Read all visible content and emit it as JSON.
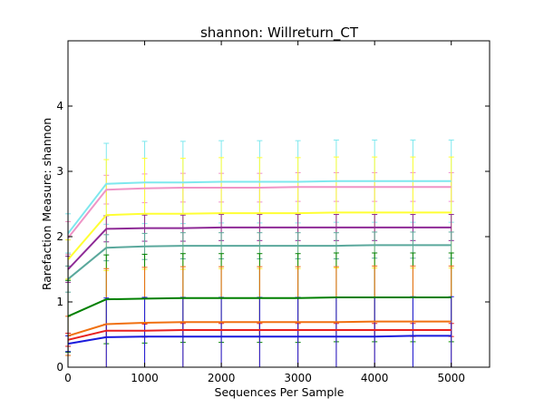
{
  "chart_data": {
    "type": "line",
    "title": "shannon: Willreturn_CT",
    "xlabel": "Sequences Per Sample",
    "ylabel": "Rarefaction Measure: shannon",
    "xlim": [
      0,
      5500
    ],
    "ylim": [
      0,
      5
    ],
    "x_ticks": [
      "0",
      "1000",
      "2000",
      "3000",
      "4000",
      "5000"
    ],
    "y_ticks": [
      "0",
      "1",
      "2",
      "3",
      "4"
    ],
    "grid": false,
    "legend": "none",
    "x": [
      1,
      500,
      1000,
      1500,
      2000,
      2500,
      3000,
      3500,
      4000,
      4500,
      5000
    ],
    "series": [
      {
        "color": "#7ee8ee",
        "values": [
          2.05,
          2.81,
          2.83,
          2.83,
          2.84,
          2.84,
          2.84,
          2.85,
          2.85,
          2.85,
          2.85
        ],
        "err": [
          0.3,
          0.62,
          0.63,
          0.63,
          0.63,
          0.63,
          0.63,
          0.63,
          0.63,
          0.63,
          0.63
        ]
      },
      {
        "color": "#ef94c6",
        "values": [
          1.98,
          2.72,
          2.74,
          2.75,
          2.75,
          2.75,
          2.76,
          2.76,
          2.76,
          2.76,
          2.76
        ],
        "err": [
          0.25,
          0.22,
          0.22,
          0.22,
          0.22,
          0.22,
          0.22,
          0.22,
          0.22,
          0.22,
          0.22
        ]
      },
      {
        "color": "#ffff33",
        "values": [
          1.65,
          2.33,
          2.35,
          2.35,
          2.36,
          2.36,
          2.36,
          2.37,
          2.37,
          2.37,
          2.37
        ],
        "err": [
          0.3,
          0.85,
          0.85,
          0.85,
          0.85,
          0.85,
          0.85,
          0.85,
          0.85,
          0.85,
          0.85
        ]
      },
      {
        "color": "#8e2a96",
        "values": [
          1.5,
          2.12,
          2.13,
          2.13,
          2.14,
          2.14,
          2.14,
          2.14,
          2.14,
          2.14,
          2.14
        ],
        "err": [
          0.2,
          0.2,
          0.2,
          0.2,
          0.2,
          0.2,
          0.2,
          0.2,
          0.2,
          0.2,
          0.2
        ]
      },
      {
        "color": "#5aa89c",
        "values": [
          1.35,
          1.83,
          1.85,
          1.86,
          1.86,
          1.86,
          1.86,
          1.86,
          1.87,
          1.87,
          1.87
        ],
        "err": [
          0.2,
          0.2,
          0.2,
          0.2,
          0.2,
          0.2,
          0.2,
          0.2,
          0.2,
          0.2,
          0.2
        ]
      },
      {
        "color": "#008000",
        "values": [
          0.78,
          1.04,
          1.05,
          1.06,
          1.06,
          1.06,
          1.06,
          1.07,
          1.07,
          1.07,
          1.07
        ],
        "err": [
          0.55,
          0.68,
          0.68,
          0.68,
          0.68,
          0.68,
          0.68,
          0.68,
          0.68,
          0.68,
          0.68
        ]
      },
      {
        "color": "#f07010",
        "values": [
          0.48,
          0.66,
          0.68,
          0.69,
          0.69,
          0.69,
          0.69,
          0.69,
          0.7,
          0.7,
          0.7
        ],
        "err": [
          0.3,
          0.85,
          0.85,
          0.85,
          0.85,
          0.85,
          0.85,
          0.85,
          0.85,
          0.85,
          0.85
        ]
      },
      {
        "color": "#e82020",
        "values": [
          0.42,
          0.56,
          0.56,
          0.57,
          0.57,
          0.57,
          0.57,
          0.57,
          0.57,
          0.57,
          0.57
        ],
        "err": [
          0.1,
          0.1,
          0.1,
          0.1,
          0.1,
          0.1,
          0.1,
          0.1,
          0.1,
          0.1,
          0.1
        ]
      },
      {
        "color": "#1a1adc",
        "values": [
          0.36,
          0.46,
          0.47,
          0.47,
          0.47,
          0.47,
          0.47,
          0.47,
          0.47,
          0.48,
          0.48
        ],
        "err": [
          0.12,
          0.6,
          0.6,
          0.6,
          0.6,
          0.6,
          0.6,
          0.6,
          0.6,
          0.6,
          0.6
        ]
      }
    ]
  }
}
